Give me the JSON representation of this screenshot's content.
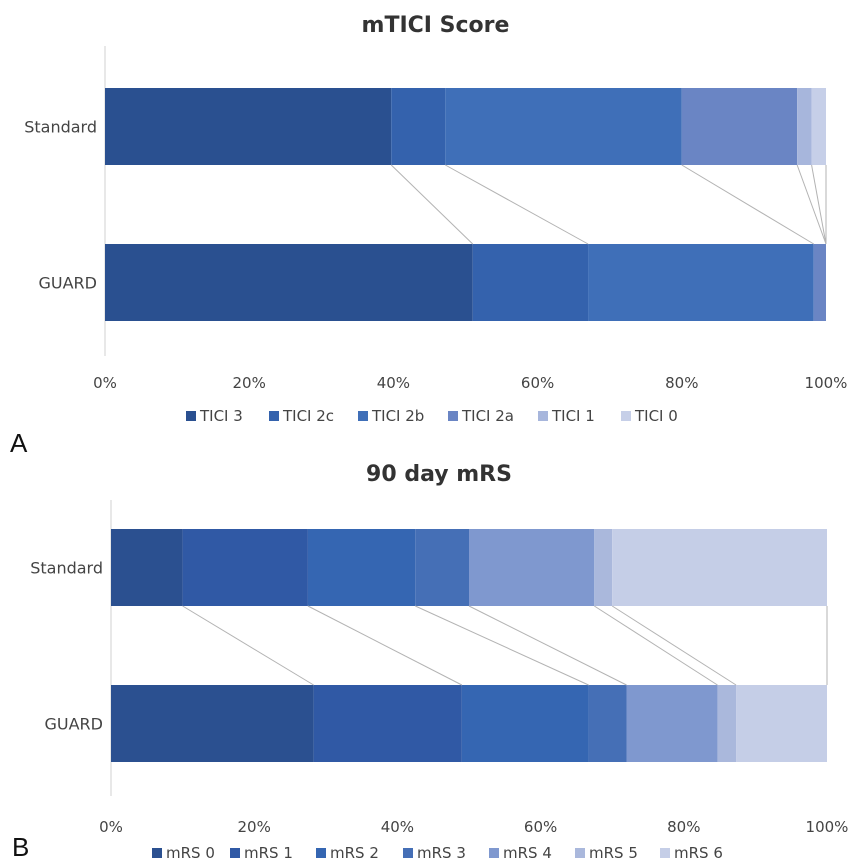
{
  "panels": [
    {
      "letter": "A"
    },
    {
      "letter": "B"
    }
  ],
  "chart_data": [
    {
      "type": "bar",
      "orientation": "horizontal",
      "stacked": "percent",
      "title": "mTICI Score",
      "categories": [
        "Standard",
        "GUARD"
      ],
      "series": [
        {
          "name": "TICI 3",
          "color": "#2a5090",
          "values": [
            39.7,
            51
          ]
        },
        {
          "name": "TICI 2c",
          "color": "#3462ad",
          "values": [
            7.5,
            16
          ]
        },
        {
          "name": "TICI 2b",
          "color": "#3f6fb8",
          "values": [
            32.8,
            31.3
          ]
        },
        {
          "name": "TICI 2a",
          "color": "#6a85c4",
          "values": [
            16.0,
            1.7
          ]
        },
        {
          "name": "TICI 1",
          "color": "#a7b6dc",
          "values": [
            2.0,
            0
          ]
        },
        {
          "name": "TICI 0",
          "color": "#c6cfe8",
          "values": [
            2.0,
            0
          ]
        }
      ],
      "xlim": [
        0,
        100
      ],
      "x_ticks": [
        "0%",
        "20%",
        "40%",
        "60%",
        "80%",
        "100%"
      ],
      "legend": "bottom",
      "grid": false,
      "connector_lines": true
    },
    {
      "type": "bar",
      "orientation": "horizontal",
      "stacked": "percent",
      "title": "90 day mRS",
      "categories": [
        "Standard",
        "GUARD"
      ],
      "series": [
        {
          "name": "mRS 0",
          "color": "#2b5090",
          "values": [
            10,
            28.3
          ]
        },
        {
          "name": "mRS 1",
          "color": "#3059a5",
          "values": [
            17.5,
            20.7
          ]
        },
        {
          "name": "mRS 2",
          "color": "#3566b2",
          "values": [
            15,
            17.7
          ]
        },
        {
          "name": "mRS 3",
          "color": "#456fb6",
          "values": [
            7.5,
            5.3
          ]
        },
        {
          "name": "mRS 4",
          "color": "#7f98cf",
          "values": [
            17.5,
            12.7
          ]
        },
        {
          "name": "mRS 5",
          "color": "#aab8dc",
          "values": [
            2.5,
            2.6
          ]
        },
        {
          "name": "mRS 6",
          "color": "#c5cee7",
          "values": [
            30,
            12.7
          ]
        }
      ],
      "xlim": [
        0,
        100
      ],
      "x_ticks": [
        "0%",
        "20%",
        "40%",
        "60%",
        "80%",
        "100%"
      ],
      "legend": "bottom",
      "grid": false,
      "connector_lines": true
    }
  ]
}
